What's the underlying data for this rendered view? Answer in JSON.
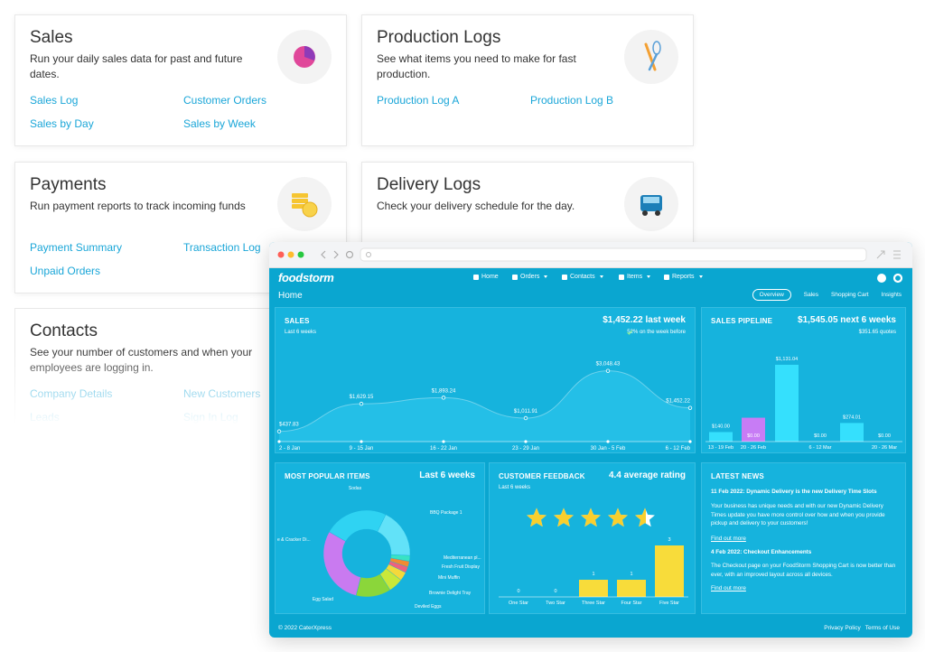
{
  "cards": [
    {
      "title": "Sales",
      "description": "Run your daily sales data for past and future dates.",
      "links": [
        "Sales Log",
        "Customer Orders",
        "Sales by Day",
        "Sales by Week"
      ]
    },
    {
      "title": "Production Logs",
      "description": "See what items you need to make for fast production.",
      "links": [
        "Production Log A",
        "Production Log B"
      ]
    },
    {
      "title": "Payments",
      "description": "Run payment reports to track incoming funds",
      "links": [
        "Payment Summary",
        "Transaction Log",
        "Unpaid Orders"
      ]
    },
    {
      "title": "Delivery Logs",
      "description": "Check your delivery schedule for the day."
    },
    {
      "title": "Contacts",
      "description": "See your number of customers and when your employees are logging in.",
      "links": [
        "Company Details",
        "New Customers",
        "Leads",
        "Sign In Log"
      ]
    }
  ],
  "dashboard": {
    "brand": "foodstorm",
    "nav": [
      "Home",
      "Orders",
      "Contacts",
      "Items",
      "Reports"
    ],
    "page_title": "Home",
    "tabs": [
      "Overview",
      "Sales",
      "Shopping Cart",
      "Insights"
    ],
    "sales": {
      "title": "SALES",
      "subtitle": "Last 6 weeks",
      "headline": "$1,452.22 last week",
      "change": "52% on the week before",
      "categories": [
        "2 - 8 Jan",
        "9 - 15 Jan",
        "16 - 22 Jan",
        "23 - 29 Jan",
        "30 Jan - 5 Feb",
        "6 - 12 Feb"
      ],
      "values": [
        437.83,
        1629.15,
        1893.24,
        1011.91,
        3048.43,
        1452.22
      ],
      "value_labels": [
        "$437.83",
        "$1,629.15",
        "$1,893.24",
        "$1,011.91",
        "$3,048.43",
        "$1,452.22"
      ]
    },
    "pipeline": {
      "title": "SALES PIPELINE",
      "headline": "$1,545.05 next 6 weeks",
      "quotes": {
        "value": 351.65,
        "label": "$351.65 quotes"
      },
      "categories": [
        "13 - 19 Feb",
        "20 - 26 Feb",
        null,
        "6 - 12 Mar",
        null,
        "20 - 26 Mar"
      ],
      "values": [
        140,
        0,
        1131.04,
        0,
        274.01,
        0
      ],
      "value_labels": [
        "$140.00",
        "$0.00",
        "$1,131.04",
        "$0.00",
        "$274.01",
        "$0.00"
      ],
      "color": "#35e0fd",
      "quotes_color": "#c77cf5"
    },
    "popular": {
      "title": "MOST POPULAR ITEMS",
      "period": "Last 6 weeks",
      "categories": [
        "Sodas",
        "BBQ Package 1",
        "Mediterranean pl...",
        "Fresh Fruit Display",
        "Mini Muffin",
        "Brownie Delight Tray",
        "Deviled Eggs",
        "Egg Salad",
        "e & Cracker Di..."
      ],
      "values": [
        22,
        17,
        2,
        2,
        2,
        3,
        5,
        12,
        27
      ],
      "colors": [
        "#2fd3f2",
        "#62e2f8",
        "#38e3c4",
        "#f28b32",
        "#f0607e",
        "#f5d83b",
        "#c9e83a",
        "#8bd63a",
        "#c97af0"
      ]
    },
    "feedback": {
      "title": "CUSTOMER FEEDBACK",
      "rating": {
        "value": 4.4,
        "label": "4.4 average rating"
      },
      "subtitle": "Last 6 weeks",
      "categories": [
        "One Star",
        "Two Star",
        "Three Star",
        "Four Star",
        "Five Star"
      ],
      "values": [
        0,
        0,
        1,
        1,
        3
      ],
      "color": "#f8dc3a"
    },
    "news": {
      "title": "LATEST NEWS",
      "items": [
        {
          "title": "11 Feb 2022: Dynamic Delivery is the new Delivery Time Slots",
          "body": "Your business has unique needs and with our new Dynamic Delivery Times update you have more control over how and when you provide pickup and delivery to your customers!",
          "link": "Find out more"
        },
        {
          "title": "4 Feb 2022: Checkout Enhancements",
          "body": "The Checkout page on your FoodStorm Shopping Cart is now better than ever, with an improved layout across all devices.",
          "link": "Find out more"
        }
      ]
    },
    "footer": {
      "copyright": "© 2022 CaterXpress",
      "links": [
        "Privacy Policy",
        "Terms of Use"
      ]
    }
  }
}
